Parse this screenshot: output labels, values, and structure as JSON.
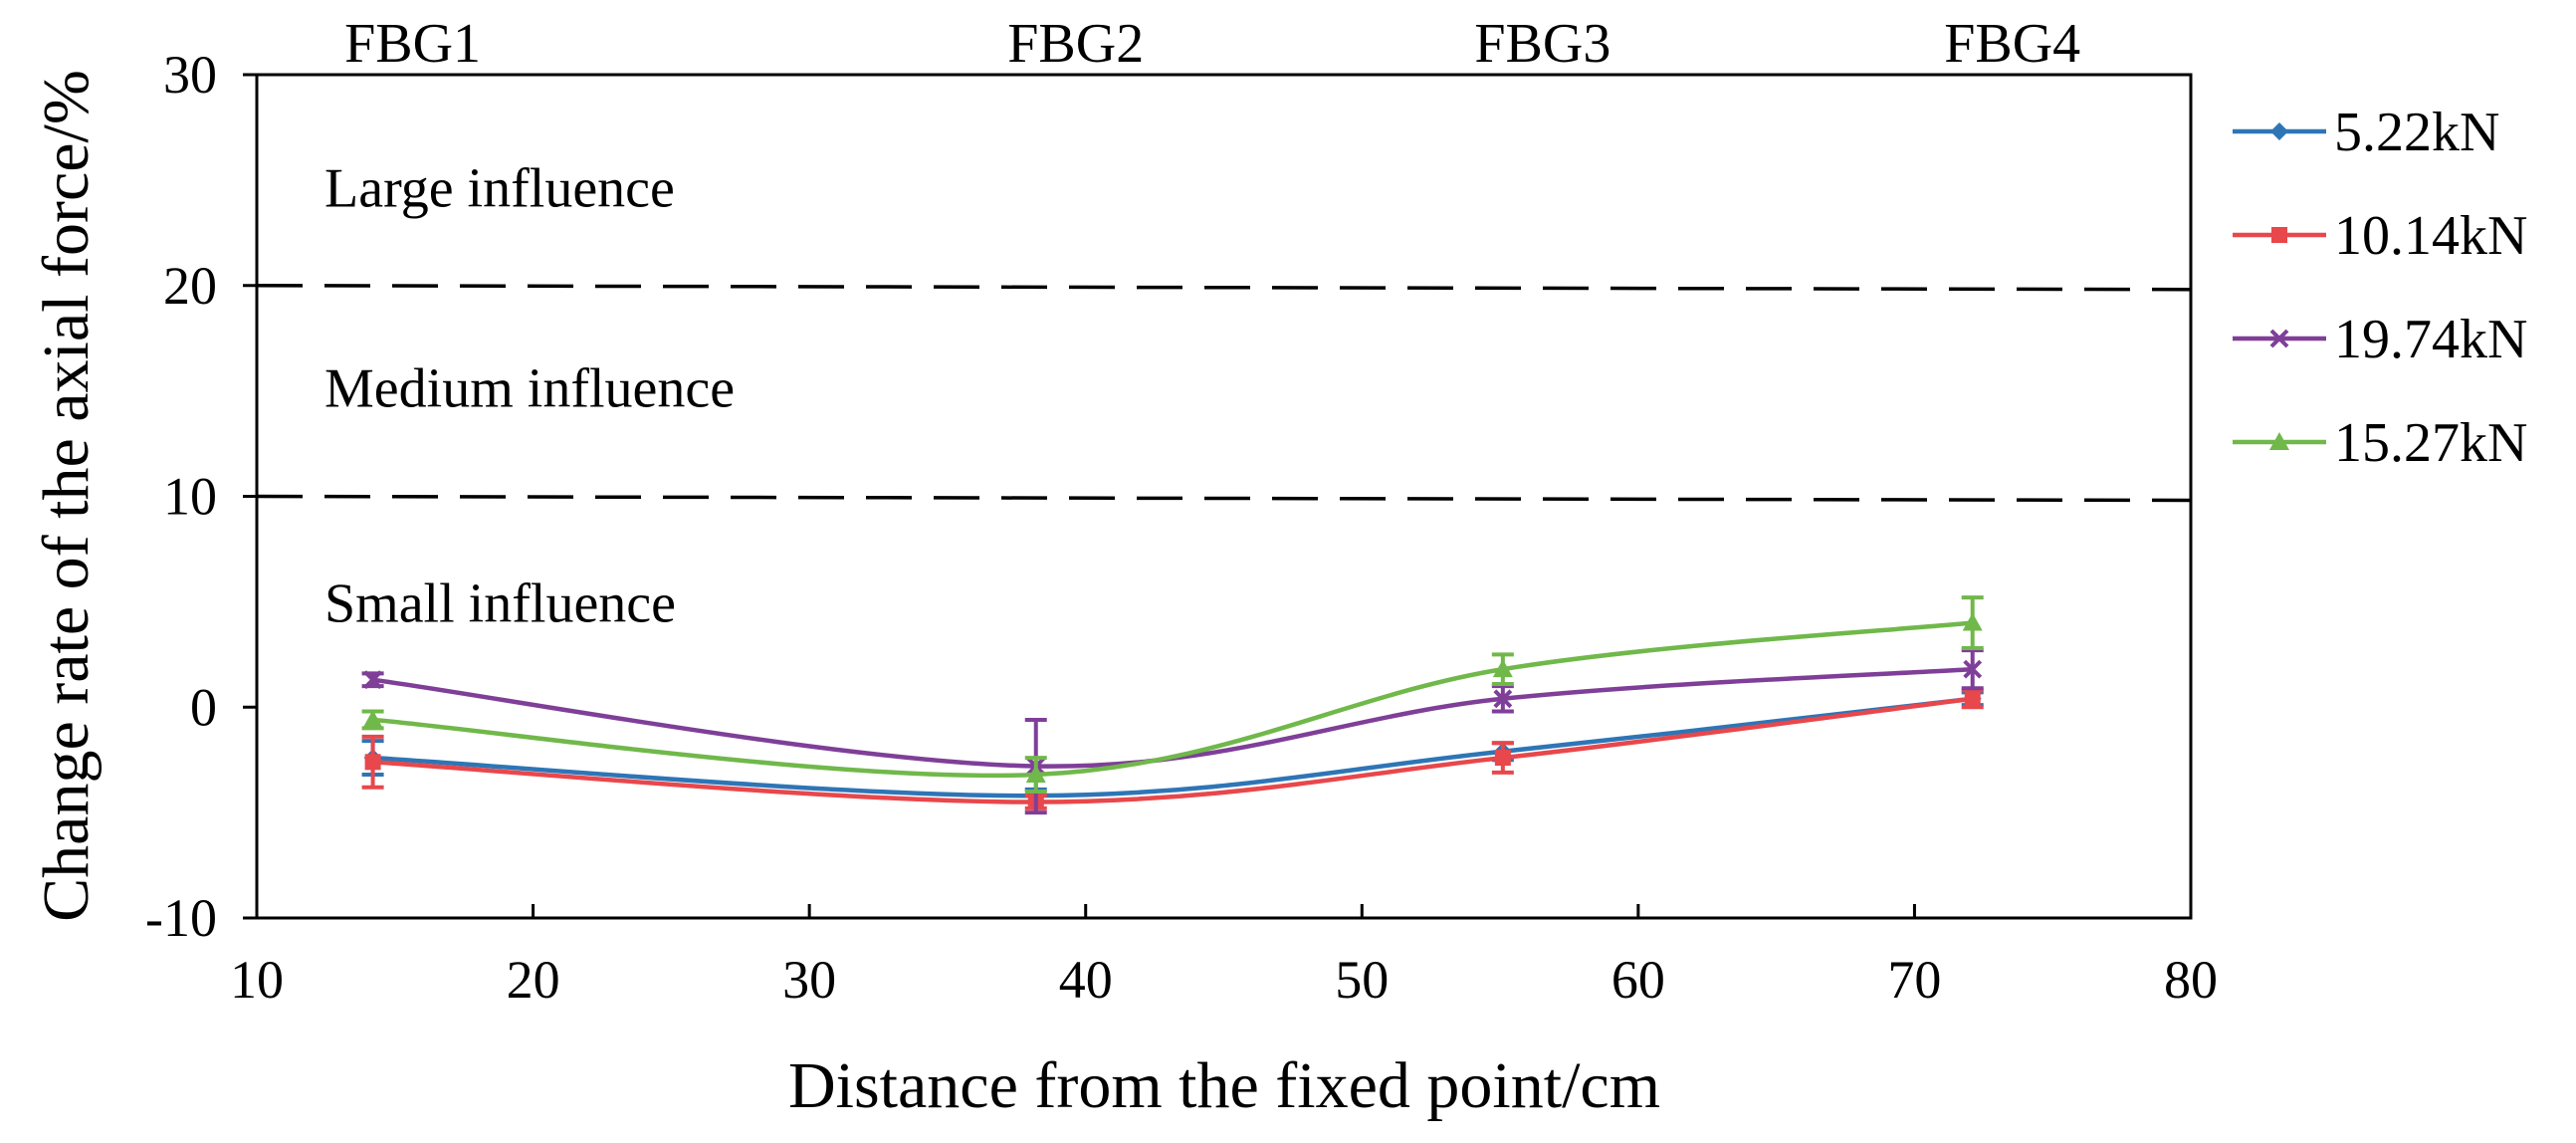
{
  "chart_data": {
    "type": "line",
    "title": "",
    "xlabel": "Distance from the fixed point/cm",
    "ylabel": "Change rate of the axial force/%",
    "xlim": [
      10,
      80
    ],
    "ylim": [
      -10,
      30
    ],
    "xticks": [
      10,
      20,
      30,
      40,
      50,
      60,
      70,
      80
    ],
    "yticks": [
      -10,
      0,
      10,
      20,
      30
    ],
    "grid": false,
    "legend_position": "right",
    "sensor_labels": [
      {
        "name": "FBG1",
        "x": 14.2
      },
      {
        "name": "FBG2",
        "x": 38.2
      },
      {
        "name": "FBG3",
        "x": 55.1
      },
      {
        "name": "FBG4",
        "x": 72.1
      }
    ],
    "thresholds": [
      20,
      10
    ],
    "zones": [
      {
        "label": "Large influence",
        "y": 24.5
      },
      {
        "label": "Medium influence",
        "y": 15
      },
      {
        "label": "Small  influence",
        "y": 4.8
      }
    ],
    "x": [
      14.2,
      38.2,
      55.1,
      72.1
    ],
    "series": [
      {
        "name": "5.22kN",
        "color": "#2E75B6",
        "marker": "diamond",
        "values": [
          -2.4,
          -4.2,
          -2.1,
          0.4
        ],
        "errors": [
          0.8,
          0.3,
          0.4,
          0.3
        ]
      },
      {
        "name": "10.14kN",
        "color": "#E8474B",
        "marker": "square",
        "values": [
          -2.6,
          -4.5,
          -2.4,
          0.4
        ],
        "errors": [
          1.2,
          0.3,
          0.7,
          0.4
        ]
      },
      {
        "name": "19.74kN",
        "color": "#7F3F98",
        "marker": "x",
        "values": [
          1.3,
          -2.8,
          0.4,
          1.8
        ],
        "errors": [
          0.3,
          2.2,
          0.6,
          0.9
        ]
      },
      {
        "name": "15.27kN",
        "color": "#70B84A",
        "marker": "triangle",
        "values": [
          -0.6,
          -3.2,
          1.8,
          4.0
        ],
        "errors": [
          0.4,
          0.8,
          0.7,
          1.2
        ]
      }
    ]
  }
}
